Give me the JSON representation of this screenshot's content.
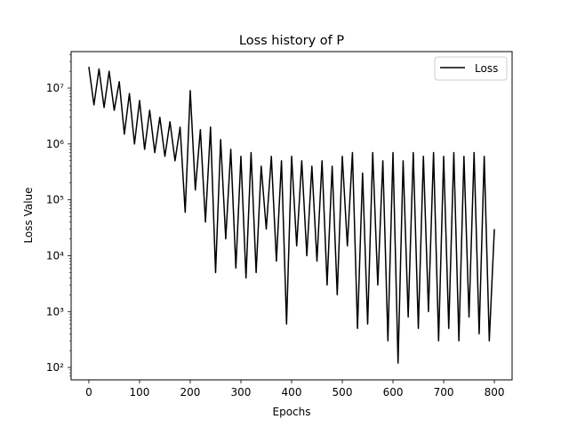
{
  "chart_data": {
    "type": "line",
    "title": "Loss history of P",
    "xlabel": "Epochs",
    "ylabel": "Loss Value",
    "y_scale": "log",
    "xlim": [
      -35,
      835
    ],
    "ylim": [
      60,
      45000000
    ],
    "x_ticks": [
      0,
      100,
      200,
      300,
      400,
      500,
      600,
      700,
      800
    ],
    "y_ticks": [
      {
        "value": 100,
        "label": "10²"
      },
      {
        "value": 1000,
        "label": "10³"
      },
      {
        "value": 10000,
        "label": "10⁴"
      },
      {
        "value": 100000,
        "label": "10⁵"
      },
      {
        "value": 1000000,
        "label": "10⁶"
      },
      {
        "value": 10000000,
        "label": "10⁷"
      }
    ],
    "legend": {
      "position": "top-right",
      "entries": [
        "Loss"
      ]
    },
    "grid": false,
    "series": [
      {
        "name": "Loss",
        "color": "#000000",
        "x": [
          0,
          10,
          20,
          30,
          40,
          50,
          60,
          70,
          80,
          90,
          100,
          110,
          120,
          130,
          140,
          150,
          160,
          170,
          180,
          190,
          200,
          210,
          220,
          230,
          240,
          250,
          260,
          270,
          280,
          290,
          300,
          310,
          320,
          330,
          340,
          350,
          360,
          370,
          380,
          390,
          400,
          410,
          420,
          430,
          440,
          450,
          460,
          470,
          480,
          490,
          500,
          510,
          520,
          530,
          540,
          550,
          560,
          570,
          580,
          590,
          600,
          610,
          620,
          630,
          640,
          650,
          660,
          670,
          680,
          690,
          700,
          710,
          720,
          730,
          740,
          750,
          760,
          770,
          780,
          790,
          800
        ],
        "y": [
          24000000,
          5000000,
          22000000,
          4500000,
          20000000,
          4000000,
          13000000,
          1500000,
          8000000,
          1000000,
          6000000,
          800000,
          4000000,
          700000,
          3000000,
          600000,
          2500000,
          500000,
          2000000,
          60000,
          9000000,
          150000,
          1800000,
          40000,
          2000000,
          5000,
          1200000,
          20000,
          800000,
          6000,
          600000,
          4000,
          700000,
          5000,
          400000,
          30000,
          600000,
          8000,
          500000,
          600,
          600000,
          15000,
          500000,
          10000,
          400000,
          8000,
          500000,
          3000,
          400000,
          2000,
          600000,
          15000,
          700000,
          500,
          300000,
          600,
          700000,
          3000,
          500000,
          300,
          700000,
          120,
          500000,
          800,
          700000,
          500,
          600000,
          1000,
          700000,
          300,
          600000,
          500,
          700000,
          300,
          600000,
          800,
          700000,
          400,
          600000,
          300,
          30000
        ]
      }
    ]
  }
}
